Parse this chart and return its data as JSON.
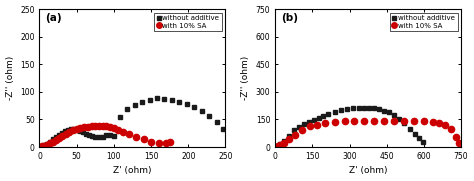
{
  "panel_a": {
    "title": "(a)",
    "xlabel": "Z' (ohm)",
    "ylabel": "-Z'' (ohm)",
    "xlim": [
      0,
      250
    ],
    "ylim": [
      0,
      250
    ],
    "xticks": [
      0,
      50,
      100,
      150,
      200,
      250
    ],
    "yticks": [
      0,
      50,
      100,
      150,
      200,
      250
    ],
    "black_x": [
      3,
      6,
      10,
      14,
      18,
      22,
      26,
      30,
      34,
      38,
      42,
      46,
      50,
      54,
      58,
      62,
      66,
      70,
      75,
      80,
      85,
      90,
      95,
      100,
      108,
      118,
      128,
      138,
      148,
      158,
      168,
      178,
      188,
      198,
      208,
      218,
      228,
      238,
      246
    ],
    "black_y": [
      1,
      3,
      6,
      10,
      14,
      18,
      22,
      26,
      29,
      31,
      32,
      32,
      31,
      29,
      27,
      24,
      22,
      20,
      18,
      18,
      19,
      21,
      22,
      20,
      55,
      68,
      76,
      82,
      86,
      88,
      87,
      85,
      82,
      78,
      72,
      65,
      56,
      45,
      33
    ],
    "red_x": [
      3,
      6,
      10,
      14,
      18,
      22,
      26,
      30,
      35,
      40,
      45,
      50,
      55,
      60,
      65,
      70,
      75,
      80,
      85,
      90,
      95,
      100,
      105,
      112,
      120,
      130,
      140,
      150,
      160,
      170,
      175
    ],
    "red_y": [
      1,
      2,
      4,
      7,
      10,
      13,
      16,
      20,
      24,
      27,
      30,
      32,
      34,
      36,
      37,
      38,
      39,
      39,
      39,
      38,
      36,
      34,
      31,
      27,
      23,
      18,
      14,
      10,
      8,
      7,
      10
    ],
    "black_color": "#1a1a1a",
    "red_color": "#cc0000",
    "legend_labels": [
      "without additive",
      "with 10% SA"
    ],
    "black_marker_size": 3.5,
    "red_marker_size": 4.5
  },
  "panel_b": {
    "title": "(b)",
    "xlabel": "Z' (ohm)",
    "ylabel": "-Z'' (ohm)",
    "xlim": [
      0,
      750
    ],
    "ylim": [
      0,
      750
    ],
    "xticks": [
      0,
      150,
      300,
      450,
      600,
      750
    ],
    "yticks": [
      0,
      150,
      300,
      450,
      600,
      750
    ],
    "black_x": [
      5,
      12,
      20,
      35,
      55,
      75,
      95,
      115,
      135,
      155,
      175,
      195,
      215,
      240,
      265,
      290,
      315,
      340,
      360,
      380,
      400,
      420,
      440,
      460,
      480,
      500,
      520,
      545,
      565,
      580,
      595
    ],
    "black_y": [
      2,
      8,
      18,
      35,
      62,
      90,
      110,
      125,
      135,
      145,
      158,
      170,
      182,
      193,
      202,
      208,
      212,
      213,
      213,
      212,
      210,
      205,
      198,
      188,
      173,
      155,
      132,
      100,
      70,
      50,
      25
    ],
    "red_x": [
      5,
      12,
      20,
      35,
      55,
      80,
      110,
      140,
      170,
      200,
      240,
      280,
      320,
      360,
      400,
      440,
      480,
      520,
      560,
      600,
      635,
      660,
      685,
      710,
      730,
      742
    ],
    "red_y": [
      1,
      4,
      10,
      22,
      42,
      68,
      95,
      112,
      122,
      130,
      137,
      141,
      143,
      144,
      144,
      143,
      142,
      141,
      140,
      139,
      137,
      133,
      122,
      98,
      55,
      20
    ],
    "black_color": "#1a1a1a",
    "red_color": "#cc0000",
    "legend_labels": [
      "without additive",
      "with 10% SA"
    ],
    "black_marker_size": 3.5,
    "red_marker_size": 4.5
  }
}
